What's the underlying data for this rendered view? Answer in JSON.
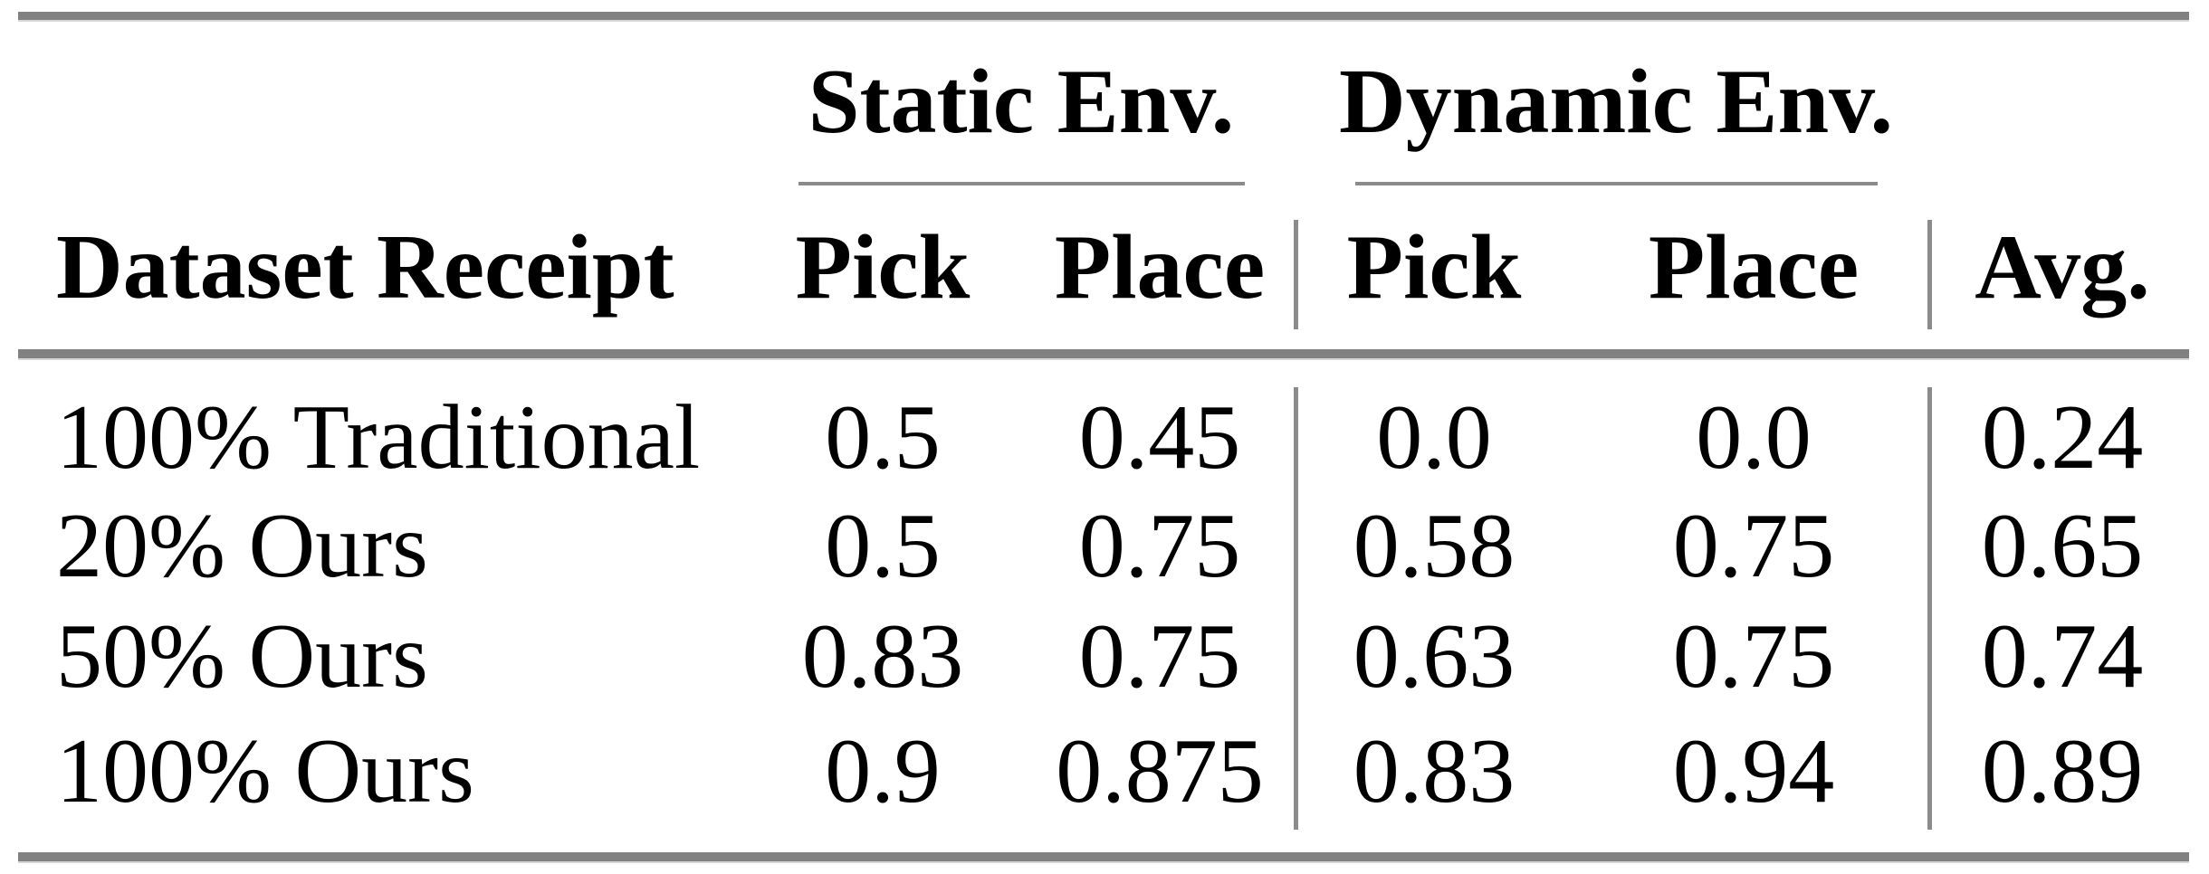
{
  "theme": {
    "rule_thick": "#818181",
    "rule_thin": "#8b8b8b",
    "rule_shadow": "#d6d6d6",
    "text": "#000000",
    "background": "#ffffff"
  },
  "table": {
    "groups": [
      {
        "label": "Static Env."
      },
      {
        "label": "Dynamic Env."
      }
    ],
    "headers": {
      "dataset": "Dataset Receipt",
      "cols": [
        "Pick",
        "Place",
        "Pick",
        "Place",
        "Avg."
      ]
    },
    "rows": [
      {
        "label": "100% Traditional",
        "values": [
          "0.5",
          "0.45",
          "0.0",
          "0.0",
          "0.24"
        ]
      },
      {
        "label": "20% Ours",
        "values": [
          "0.5",
          "0.75",
          "0.58",
          "0.75",
          "0.65"
        ]
      },
      {
        "label": "50% Ours",
        "values": [
          "0.83",
          "0.75",
          "0.63",
          "0.75",
          "0.74"
        ]
      },
      {
        "label": "100% Ours",
        "values": [
          "0.9",
          "0.875",
          "0.83",
          "0.94",
          "0.89"
        ]
      }
    ]
  },
  "chart_data": {
    "type": "table",
    "title": "",
    "column_groups": [
      "Static Env.",
      "Dynamic Env."
    ],
    "columns": [
      "Dataset Receipt",
      "Static Pick",
      "Static Place",
      "Dynamic Pick",
      "Dynamic Place",
      "Avg."
    ],
    "rows": [
      [
        "100% Traditional",
        0.5,
        0.45,
        0.0,
        0.0,
        0.24
      ],
      [
        "20% Ours",
        0.5,
        0.75,
        0.58,
        0.75,
        0.65
      ],
      [
        "50% Ours",
        0.83,
        0.75,
        0.63,
        0.75,
        0.74
      ],
      [
        "100% Ours",
        0.9,
        0.875,
        0.83,
        0.94,
        0.89
      ]
    ]
  }
}
